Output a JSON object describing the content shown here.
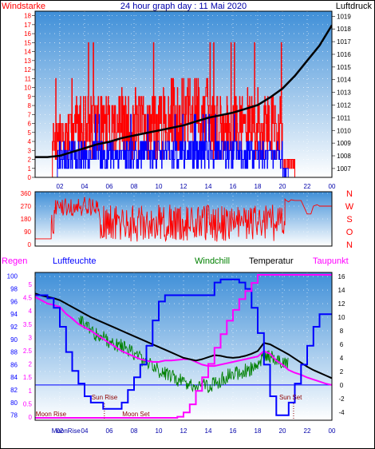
{
  "chart_data": [
    {
      "type": "line",
      "title": "24 hour graph day : 11 Mai 2020",
      "left_label": "Windstarke",
      "right_label": "Luftdruck",
      "x_ticks": [
        "02",
        "04",
        "06",
        "08",
        "10",
        "12",
        "14",
        "16",
        "18",
        "20",
        "22",
        "00"
      ],
      "y_left_ticks": [
        "0",
        "1",
        "2",
        "3",
        "4",
        "5",
        "6",
        "7",
        "8",
        "9",
        "10",
        "11",
        "12",
        "13",
        "14",
        "15",
        "16",
        "17",
        "18"
      ],
      "y_left_range": [
        0,
        18.5
      ],
      "y_right_ticks": [
        "1007",
        "1008",
        "1009",
        "1010",
        "1011",
        "1012",
        "1013",
        "1014",
        "1015",
        "1016",
        "1017",
        "1018",
        "1019"
      ],
      "y_right_range": [
        1006.3,
        1019.4
      ],
      "colors": {
        "gust": "#ff0000",
        "wind": "#0000ff",
        "pressure": "#000000"
      },
      "series": [
        {
          "key": "pressure",
          "x": [
            0.0,
            1.0,
            2.0,
            3.0,
            4.0,
            5.0,
            6.0,
            7.0,
            8.0,
            9.0,
            10.0,
            11.0,
            12.0,
            13.0,
            14.0,
            15.0,
            16.0,
            17.0,
            18.0,
            19.0,
            20.0,
            21.0,
            22.0,
            23.0,
            24.0
          ],
          "values": [
            1007.9,
            1007.9,
            1008.0,
            1008.3,
            1008.6,
            1008.9,
            1009.1,
            1009.4,
            1009.6,
            1009.8,
            1010.0,
            1010.2,
            1010.4,
            1010.7,
            1011.0,
            1011.2,
            1011.4,
            1011.7,
            1012.0,
            1012.6,
            1013.3,
            1014.3,
            1015.5,
            1016.7,
            1018.3
          ]
        }
      ]
    },
    {
      "type": "line",
      "x_ticks": [
        "02",
        "04",
        "06",
        "08",
        "10",
        "12",
        "14",
        "16",
        "18",
        "20",
        "22",
        "00"
      ],
      "y_left_ticks": [
        "0",
        "90",
        "180",
        "270",
        "360"
      ],
      "y_range": [
        0,
        360
      ],
      "right_labels": [
        "N",
        "W",
        "S",
        "O",
        "N"
      ],
      "colors": {
        "direction": "#ff0000"
      },
      "series": [
        {
          "key": "direction_after_20h",
          "x": [
            20.2,
            20.3,
            20.5,
            20.7,
            21.0,
            21.5,
            22.0,
            22.3,
            22.5,
            22.8,
            23.0,
            23.3,
            23.6,
            24.0
          ],
          "values": [
            320,
            310,
            300,
            315,
            310,
            310,
            215,
            215,
            270,
            280,
            270,
            270,
            270,
            270
          ]
        }
      ]
    },
    {
      "type": "line",
      "labels": {
        "regen": "Regen",
        "luftfeuchte": "Luftfeuchte",
        "windchill": "Windchill",
        "temperatur": "Temperatur",
        "taupunkt": "Taupunkt"
      },
      "x_ticks": [
        "02",
        "04",
        "06",
        "08",
        "10",
        "12",
        "14",
        "16",
        "18",
        "20",
        "22",
        "00"
      ],
      "rain_ticks": [
        "0",
        "0.5",
        "1",
        "1.5",
        "2",
        "2.5",
        "3",
        "3.5",
        "4",
        "4.5",
        "5"
      ],
      "humidity_ticks": [
        "78",
        "80",
        "82",
        "84",
        "86",
        "88",
        "90",
        "92",
        "94",
        "96",
        "98",
        "100"
      ],
      "temp_ticks": [
        "-4",
        "-2",
        "0",
        "2",
        "4",
        "6",
        "8",
        "10",
        "12",
        "14",
        "16"
      ],
      "humidity_range": [
        77.2,
        100.6
      ],
      "temp_range": [
        -5.2,
        16.6
      ],
      "annotations": {
        "sun_rise": "Sun Rise",
        "sun_set": "Sun Set",
        "moon_rise": "Moon Rise",
        "moon_set": "Moon Set",
        "moon_rise_axis": "MoonRise"
      },
      "annotation_times": {
        "sun_rise": 5.6,
        "sun_set": 20.9,
        "moon_rise": 1.6,
        "moon_set": 10.4
      },
      "colors": {
        "humidity": "#0000ff",
        "temperature": "#000000",
        "dewpoint": "#ff00ff",
        "windchill": "#008000",
        "rain": "#ff00ff",
        "zero_line": "#0000ff"
      },
      "series": [
        {
          "key": "humidity",
          "x": [
            0.0,
            0.5,
            1.0,
            1.5,
            2.0,
            2.5,
            3.0,
            3.5,
            4.0,
            4.5,
            5.0,
            5.5,
            6.0,
            6.5,
            7.0,
            7.5,
            8.0,
            8.5,
            9.0,
            9.5,
            10.0,
            10.5,
            11.0,
            11.5,
            12.0,
            12.5,
            13.0,
            13.5,
            14.0,
            14.5,
            15.0,
            15.5,
            16.0,
            16.5,
            17.0,
            17.5,
            18.0,
            18.5,
            19.0,
            19.5,
            20.0,
            20.5,
            21.0,
            21.5,
            22.0,
            22.5,
            23.0,
            23.5,
            24.0
          ],
          "values": [
            97,
            97,
            96.5,
            95,
            92,
            88,
            85,
            83,
            81,
            80,
            80,
            79,
            79,
            79,
            80,
            82,
            84,
            86,
            89,
            93,
            96,
            97,
            97,
            97,
            97,
            97,
            97,
            97,
            97,
            99,
            99.5,
            99.5,
            99.5,
            99,
            98,
            95,
            91,
            86,
            81,
            78,
            78,
            80,
            83,
            86,
            89,
            92,
            94,
            94,
            94
          ]
        },
        {
          "key": "temperature",
          "x": [
            0.0,
            0.5,
            1.0,
            1.5,
            2.0,
            2.5,
            3.0,
            3.5,
            4.0,
            4.5,
            5.0,
            5.5,
            6.0,
            6.5,
            7.0,
            7.5,
            8.0,
            8.5,
            9.0,
            9.5,
            10.0,
            10.5,
            11.0,
            11.5,
            12.0,
            12.5,
            13.0,
            13.5,
            14.0,
            14.5,
            15.0,
            15.5,
            16.0,
            16.5,
            17.0,
            17.5,
            18.0,
            18.5,
            19.0,
            19.5,
            20.0,
            20.5,
            21.0,
            21.5,
            22.0,
            22.5,
            23.0,
            23.5,
            24.0
          ],
          "values": [
            13.5,
            13.2,
            13.0,
            12.8,
            12.5,
            12.0,
            11.5,
            11.0,
            10.5,
            10.0,
            9.6,
            9.2,
            8.8,
            8.4,
            8.0,
            7.6,
            7.2,
            6.8,
            6.4,
            6.0,
            5.6,
            5.2,
            4.8,
            4.4,
            4.0,
            3.8,
            3.6,
            3.8,
            4.1,
            4.4,
            4.3,
            4.1,
            4.0,
            4.1,
            4.3,
            4.6,
            5.0,
            6.2,
            6.0,
            5.5,
            5.0,
            4.5,
            3.9,
            3.3,
            2.7,
            2.2,
            1.8,
            1.4,
            1.0
          ]
        },
        {
          "key": "dewpoint",
          "x": [
            0.0,
            0.5,
            1.0,
            1.5,
            2.0,
            2.5,
            3.0,
            3.5,
            4.0,
            4.5,
            5.0,
            5.5,
            6.0,
            6.5,
            7.0,
            7.5,
            8.0,
            8.5,
            9.0,
            9.5,
            10.0,
            10.5,
            11.0,
            11.5,
            12.0,
            12.5,
            13.0,
            13.5,
            14.0,
            14.5,
            15.0,
            15.5,
            16.0,
            16.5,
            17.0,
            17.5,
            18.0,
            18.5,
            19.0,
            19.5,
            20.0,
            20.5,
            21.0,
            21.5,
            22.0,
            22.5,
            23.0,
            23.5,
            24.0
          ],
          "values": [
            13.0,
            12.5,
            12.0,
            11.8,
            11.5,
            10.5,
            9.8,
            9.0,
            8.5,
            8.0,
            7.4,
            6.8,
            6.2,
            5.6,
            5.0,
            4.6,
            4.2,
            3.8,
            3.6,
            3.4,
            3.4,
            3.6,
            3.6,
            3.7,
            3.8,
            3.8,
            3.4,
            3.0,
            2.8,
            2.8,
            3.0,
            3.2,
            3.4,
            3.6,
            3.8,
            4.0,
            4.2,
            5.0,
            4.6,
            3.6,
            3.0,
            2.2,
            1.8,
            1.5,
            1.1,
            0.8,
            0.5,
            0.2,
            0.0
          ]
        },
        {
          "key": "windchill",
          "x": [
            3.5,
            4.0,
            4.5,
            5.0,
            5.5,
            6.0,
            6.5,
            7.0,
            7.5,
            8.0,
            8.5,
            9.0,
            9.5,
            10.0,
            10.5,
            11.0,
            11.5,
            12.0,
            12.5,
            13.0,
            13.5,
            14.0,
            14.5,
            15.0,
            15.5,
            16.0,
            16.5,
            17.0,
            17.5,
            18.0,
            18.5,
            19.0,
            19.5,
            20.0,
            20.5
          ],
          "values": [
            10.5,
            10.0,
            9.2,
            8.5,
            8.0,
            7.6,
            7.2,
            6.8,
            6.2,
            5.6,
            5.0,
            4.4,
            3.8,
            3.2,
            2.8,
            2.4,
            2.0,
            1.6,
            1.4,
            1.2,
            1.0,
            1.0,
            1.4,
            1.8,
            2.4,
            2.8,
            3.0,
            3.2,
            3.4,
            3.6,
            5.6,
            5.2,
            4.8,
            4.4,
            4.0
          ]
        },
        {
          "key": "rain",
          "x": [
            0.0,
            11.0,
            11.5,
            12.0,
            12.5,
            13.0,
            13.5,
            14.0,
            14.5,
            15.0,
            15.5,
            16.0,
            16.5,
            17.0,
            17.5,
            18.0,
            18.5,
            19.0,
            19.5,
            20.0,
            20.5,
            21.0,
            22.0,
            23.0,
            24.0
          ],
          "values": [
            0.0,
            0.0,
            0.04,
            0.2,
            0.5,
            1.0,
            1.5,
            2.0,
            2.6,
            3.1,
            3.6,
            4.0,
            4.4,
            4.7,
            5.0,
            5.3,
            5.3,
            5.3,
            5.3,
            5.3,
            5.3,
            5.3,
            5.3,
            5.3,
            5.3
          ]
        }
      ]
    }
  ]
}
